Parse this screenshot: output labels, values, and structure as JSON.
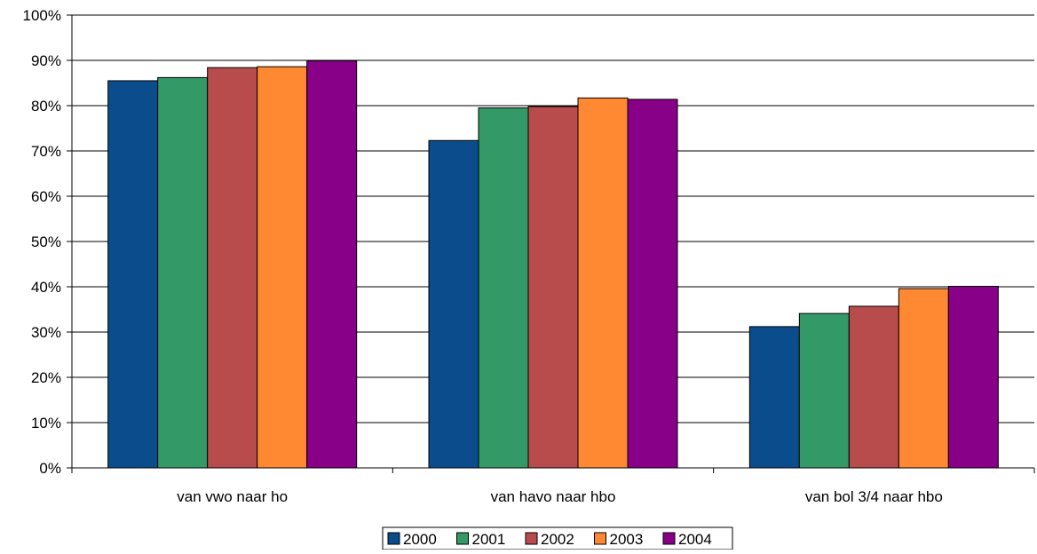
{
  "chart_data": {
    "type": "bar",
    "categories": [
      "van vwo naar ho",
      "van havo naar hbo",
      "van bol 3/4 naar hbo"
    ],
    "series": [
      {
        "name": "2000",
        "color": "#0B4D8C",
        "values": [
          85.5,
          72.3,
          31.2
        ]
      },
      {
        "name": "2001",
        "color": "#339966",
        "values": [
          86.2,
          79.5,
          34.1
        ]
      },
      {
        "name": "2002",
        "color": "#B84C4C",
        "values": [
          88.4,
          79.8,
          35.7
        ]
      },
      {
        "name": "2003",
        "color": "#FF8833",
        "values": [
          88.6,
          81.7,
          39.6
        ]
      },
      {
        "name": "2004",
        "color": "#880088",
        "values": [
          89.9,
          81.4,
          40.1
        ]
      }
    ],
    "ylim": [
      0,
      100
    ],
    "yticks": [
      "0%",
      "10%",
      "20%",
      "30%",
      "40%",
      "50%",
      "60%",
      "70%",
      "80%",
      "90%",
      "100%"
    ],
    "grid": true,
    "legend_position": "bottom-center"
  }
}
